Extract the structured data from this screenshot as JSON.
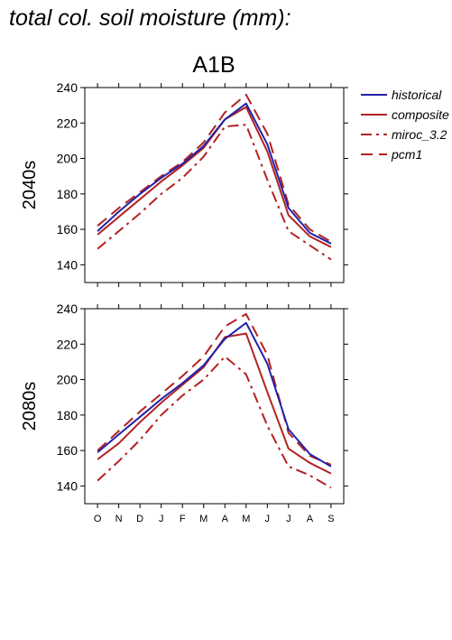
{
  "page": {
    "title": "total col. soil moisture (mm):"
  },
  "chart_data": {
    "type": "line",
    "title": "A1B",
    "categories": [
      "O",
      "N",
      "D",
      "J",
      "F",
      "M",
      "A",
      "M",
      "J",
      "J",
      "A",
      "S"
    ],
    "ylim": [
      130,
      240
    ],
    "yticks": [
      140,
      160,
      180,
      200,
      220,
      240
    ],
    "legend": {
      "placement": "top-right",
      "entries": [
        {
          "name": "historical",
          "color": "#2222aa",
          "dash": "solid"
        },
        {
          "name": "composite",
          "color": "#b22222",
          "dash": "solid"
        },
        {
          "name": "miroc_3.2",
          "color": "#b22222",
          "dash": "dashdot"
        },
        {
          "name": "pcm1",
          "color": "#b22222",
          "dash": "dashed"
        }
      ]
    },
    "panels": [
      {
        "label": "2040s",
        "series": [
          {
            "name": "historical",
            "values": [
              159,
              170,
              180,
              189,
              197,
              207,
              222,
              231,
              208,
              172,
              158,
              152
            ]
          },
          {
            "name": "composite",
            "values": [
              157,
              167,
              177,
              187,
              196,
              206,
              222,
              229,
              204,
              168,
              156,
              150
            ]
          },
          {
            "name": "miroc_3.2",
            "values": [
              149,
              159,
              169,
              180,
              189,
              201,
              218,
              219,
              188,
              159,
              151,
              143
            ]
          },
          {
            "name": "pcm1",
            "values": [
              162,
              172,
              181,
              190,
              198,
              209,
              226,
              236,
              214,
              174,
              160,
              153
            ]
          }
        ]
      },
      {
        "label": "2080s",
        "series": [
          {
            "name": "historical",
            "values": [
              159,
              169,
              179,
              189,
              198,
              208,
              223,
              232,
              209,
              172,
              158,
              151
            ]
          },
          {
            "name": "composite",
            "values": [
              155,
              164,
              176,
              187,
              197,
              207,
              224,
              226,
              193,
              161,
              153,
              147
            ]
          },
          {
            "name": "miroc_3.2",
            "values": [
              143,
              154,
              166,
              180,
              191,
              200,
              213,
              203,
              174,
              151,
              146,
              139
            ]
          },
          {
            "name": "pcm1",
            "values": [
              160,
              171,
              182,
              192,
              202,
              213,
              230,
              237,
              214,
              170,
              157,
              152
            ]
          }
        ]
      }
    ]
  }
}
